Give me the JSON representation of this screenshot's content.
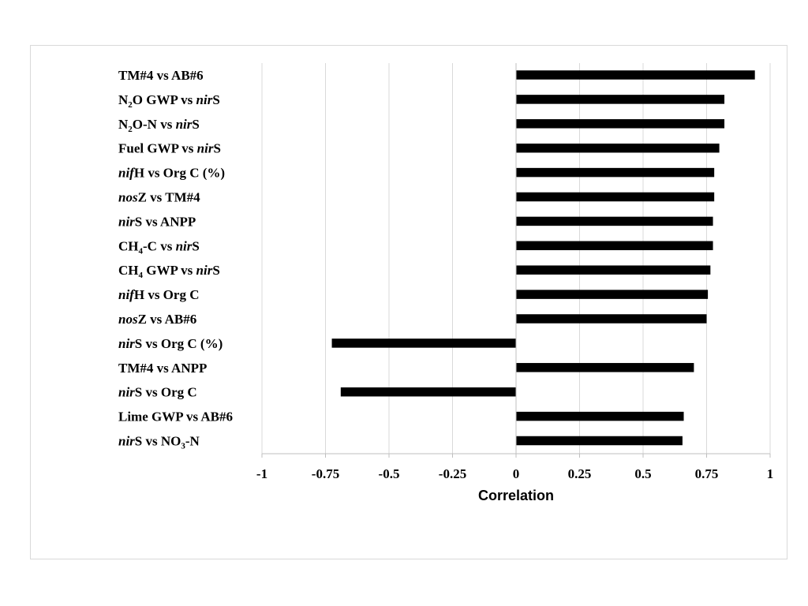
{
  "chart_data": {
    "type": "bar",
    "orientation": "horizontal",
    "title": "",
    "xlabel": "Correlation",
    "ylabel": "",
    "xlim": [
      -1,
      1
    ],
    "x_ticks": [
      "-1",
      "-0.75",
      "-0.5",
      "-0.25",
      "0",
      "0.25",
      "0.5",
      "0.75",
      "1"
    ],
    "grid": "vertical",
    "legend": "none",
    "bar_color": "#000000",
    "categories": [
      "TM#4 vs AB#6",
      "N2O GWP vs nirS",
      "N2O-N vs nirS",
      "Fuel GWP vs nirS",
      "nifH vs Org C (%)",
      "nosZ vs TM#4",
      "nirS vs ANPP",
      "CH4-C vs nirS",
      "CH4 GWP vs nirS",
      "nifH vs Org C",
      "nosZ vs AB#6",
      "nirS vs Org C (%)",
      "TM#4 vs ANPP",
      "nirS vs Org C",
      "Lime GWP vs AB#6",
      "nirS vs NO3-N"
    ],
    "category_parts": [
      [
        {
          "t": "TM#4 vs AB#6"
        }
      ],
      [
        {
          "t": "N"
        },
        {
          "t": "2",
          "sub": true
        },
        {
          "t": "O GWP vs "
        },
        {
          "t": "nir",
          "i": true
        },
        {
          "t": "S"
        }
      ],
      [
        {
          "t": "N"
        },
        {
          "t": "2",
          "sub": true
        },
        {
          "t": "O-N vs "
        },
        {
          "t": "nir",
          "i": true
        },
        {
          "t": "S"
        }
      ],
      [
        {
          "t": "Fuel GWP vs "
        },
        {
          "t": "nir",
          "i": true
        },
        {
          "t": "S"
        }
      ],
      [
        {
          "t": "nif",
          "i": true
        },
        {
          "t": "H vs Org C (%)"
        }
      ],
      [
        {
          "t": "nos",
          "i": true
        },
        {
          "t": "Z vs TM#4"
        }
      ],
      [
        {
          "t": "nir",
          "i": true
        },
        {
          "t": "S vs ANPP"
        }
      ],
      [
        {
          "t": "CH"
        },
        {
          "t": "4",
          "sub": true
        },
        {
          "t": "-C vs "
        },
        {
          "t": "nir",
          "i": true
        },
        {
          "t": "S"
        }
      ],
      [
        {
          "t": "CH"
        },
        {
          "t": "4",
          "sub": true
        },
        {
          "t": " GWP vs "
        },
        {
          "t": "nir",
          "i": true
        },
        {
          "t": "S"
        }
      ],
      [
        {
          "t": "nif",
          "i": true
        },
        {
          "t": "H vs Org C"
        }
      ],
      [
        {
          "t": "nos",
          "i": true
        },
        {
          "t": "Z vs AB#6"
        }
      ],
      [
        {
          "t": "nir",
          "i": true
        },
        {
          "t": "S vs Org C (%)"
        }
      ],
      [
        {
          "t": "TM#4 vs ANPP"
        }
      ],
      [
        {
          "t": "nir",
          "i": true
        },
        {
          "t": "S vs Org C"
        }
      ],
      [
        {
          "t": "Lime GWP vs AB#6"
        }
      ],
      [
        {
          "t": "nir",
          "i": true
        },
        {
          "t": "S vs NO"
        },
        {
          "t": "3",
          "sub": true
        },
        {
          "t": "-N"
        }
      ]
    ],
    "values": [
      0.94,
      0.82,
      0.82,
      0.8,
      0.78,
      0.78,
      0.775,
      0.775,
      0.765,
      0.755,
      0.75,
      -0.725,
      0.7,
      -0.69,
      0.66,
      0.655
    ]
  }
}
